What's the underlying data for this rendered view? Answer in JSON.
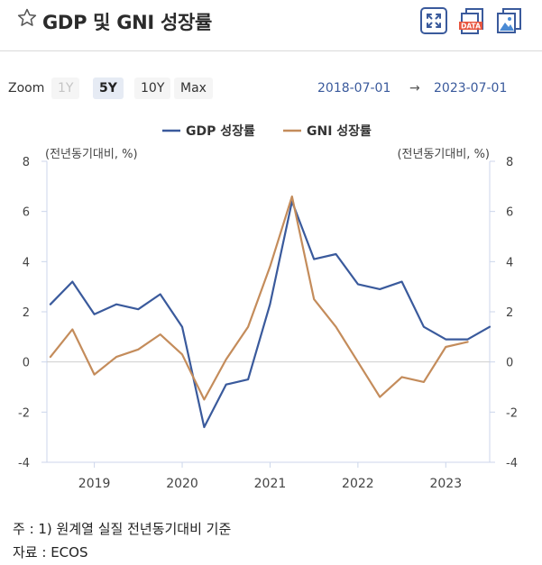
{
  "header": {
    "title": "GDP 및 GNI 성장률",
    "icons": [
      "star-icon",
      "expand-icon",
      "data-download-icon",
      "image-download-icon"
    ],
    "data_badge": "DATA"
  },
  "zoom": {
    "label": "Zoom",
    "options": [
      "1Y",
      "5Y",
      "10Y",
      "Max"
    ],
    "selected": "5Y",
    "from": "2018-07-01",
    "arrow": "→",
    "to": "2023-07-01"
  },
  "chart_data": {
    "type": "line",
    "left_unit": "(전년동기대비, %)",
    "right_unit": "(전년동기대비, %)",
    "ylim": [
      -4,
      8
    ],
    "y_ticks": [
      -4,
      -2,
      0,
      2,
      4,
      6,
      8
    ],
    "x_ticks": [
      {
        "label": "2019",
        "x": 2019.0
      },
      {
        "label": "2020",
        "x": 2020.0
      },
      {
        "label": "2021",
        "x": 2021.0
      },
      {
        "label": "2022",
        "x": 2022.0
      },
      {
        "label": "2023",
        "x": 2023.0
      }
    ],
    "xlim": [
      2018.46,
      2023.5
    ],
    "legend_position": "top-center",
    "series": [
      {
        "name": "GDP 성장률",
        "color": "#3a5a9c",
        "axis": "left",
        "points": [
          [
            2018.5,
            2.3
          ],
          [
            2018.75,
            3.2
          ],
          [
            2019.0,
            1.9
          ],
          [
            2019.25,
            2.3
          ],
          [
            2019.5,
            2.1
          ],
          [
            2019.75,
            2.7
          ],
          [
            2020.0,
            1.4
          ],
          [
            2020.25,
            -2.6
          ],
          [
            2020.5,
            -0.9
          ],
          [
            2020.75,
            -0.7
          ],
          [
            2021.0,
            2.3
          ],
          [
            2021.25,
            6.4
          ],
          [
            2021.5,
            4.1
          ],
          [
            2021.75,
            4.3
          ],
          [
            2022.0,
            3.1
          ],
          [
            2022.25,
            2.9
          ],
          [
            2022.5,
            3.2
          ],
          [
            2022.75,
            1.4
          ],
          [
            2023.0,
            0.9
          ],
          [
            2023.25,
            0.9
          ],
          [
            2023.5,
            1.4
          ]
        ]
      },
      {
        "name": "GNI 성장률",
        "color": "#c48c5b",
        "axis": "right",
        "points": [
          [
            2018.5,
            0.2
          ],
          [
            2018.75,
            1.3
          ],
          [
            2019.0,
            -0.5
          ],
          [
            2019.25,
            0.2
          ],
          [
            2019.5,
            0.5
          ],
          [
            2019.75,
            1.1
          ],
          [
            2020.0,
            0.3
          ],
          [
            2020.25,
            -1.5
          ],
          [
            2020.5,
            0.1
          ],
          [
            2020.75,
            1.4
          ],
          [
            2021.0,
            3.8
          ],
          [
            2021.25,
            6.6
          ],
          [
            2021.5,
            2.5
          ],
          [
            2021.75,
            1.4
          ],
          [
            2022.0,
            0.0
          ],
          [
            2022.25,
            -1.4
          ],
          [
            2022.5,
            -0.6
          ],
          [
            2022.75,
            -0.8
          ],
          [
            2023.0,
            0.6
          ],
          [
            2023.25,
            0.8
          ]
        ]
      }
    ]
  },
  "notes": {
    "note1": "주 : 1)  원계열 실질 전년동기대비 기준",
    "source": "자료 :  ECOS"
  }
}
